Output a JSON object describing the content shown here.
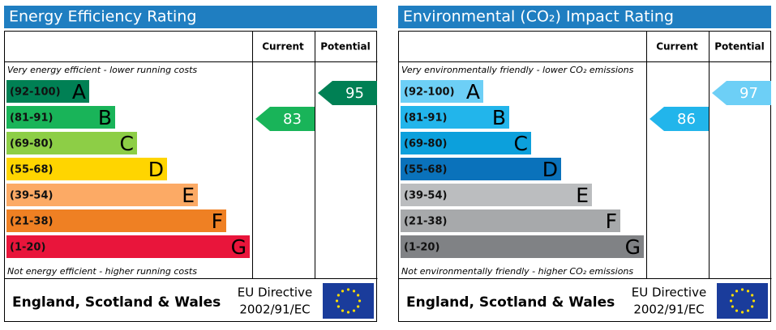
{
  "panels": [
    {
      "title": "Energy Efficiency Rating",
      "headers": [
        "Current",
        "Potential"
      ],
      "top_note": "Very energy efficient - lower running costs",
      "bottom_note": "Not energy efficient - higher running costs",
      "bands": [
        {
          "range": "(92-100)",
          "letter": "A",
          "color": "#008054"
        },
        {
          "range": "(81-91)",
          "letter": "B",
          "color": "#19b459"
        },
        {
          "range": "(69-80)",
          "letter": "C",
          "color": "#8dce46"
        },
        {
          "range": "(55-68)",
          "letter": "D",
          "color": "#ffd500"
        },
        {
          "range": "(39-54)",
          "letter": "E",
          "color": "#fcaa65"
        },
        {
          "range": "(21-38)",
          "letter": "F",
          "color": "#ef8023"
        },
        {
          "range": "(1-20)",
          "letter": "G",
          "color": "#e9153b"
        }
      ],
      "current": 83,
      "potential": 95,
      "footer": {
        "region": "England, Scotland & Wales",
        "directive": [
          "EU Directive",
          "2002/91/EC"
        ]
      }
    },
    {
      "title": "Environmental (CO₂) Impact Rating",
      "headers": [
        "Current",
        "Potential"
      ],
      "top_note": "Very environmentally friendly - lower CO₂ emissions",
      "bottom_note": "Not environmentally friendly - higher CO₂ emissions",
      "bands": [
        {
          "range": "(92-100)",
          "letter": "A",
          "color": "#6dcff6"
        },
        {
          "range": "(81-91)",
          "letter": "B",
          "color": "#22b5eb"
        },
        {
          "range": "(69-80)",
          "letter": "C",
          "color": "#0ca0dc"
        },
        {
          "range": "(55-68)",
          "letter": "D",
          "color": "#0a72bb"
        },
        {
          "range": "(39-54)",
          "letter": "E",
          "color": "#bbbdbf"
        },
        {
          "range": "(21-38)",
          "letter": "F",
          "color": "#a7a9ab"
        },
        {
          "range": "(1-20)",
          "letter": "G",
          "color": "#808285"
        }
      ],
      "current": 86,
      "potential": 97,
      "footer": {
        "region": "England, Scotland & Wales",
        "directive": [
          "EU Directive",
          "2002/91/EC"
        ]
      }
    }
  ]
}
